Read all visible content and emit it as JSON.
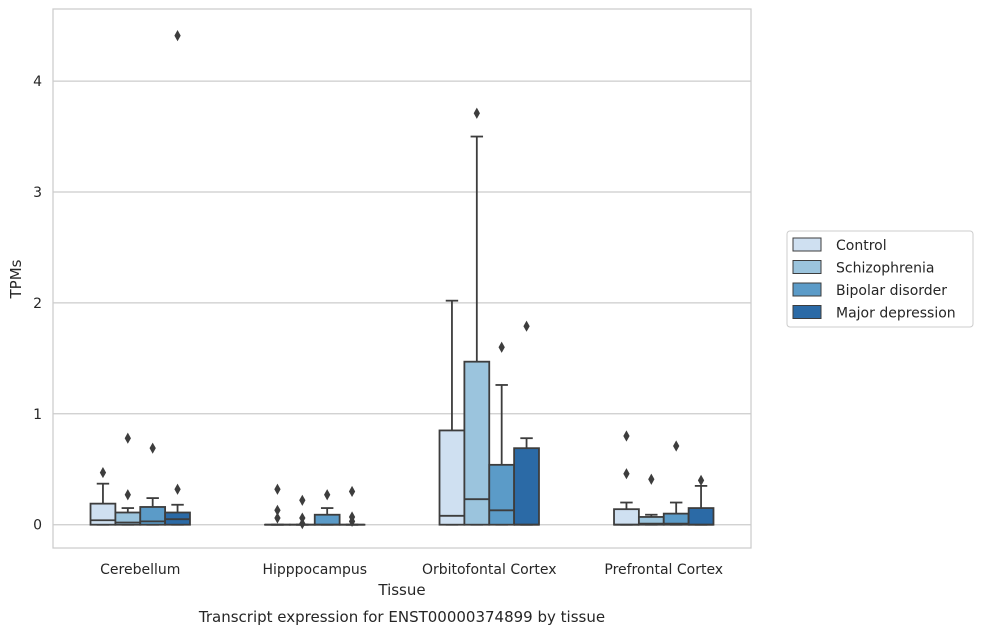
{
  "chart_data": {
    "type": "box",
    "title": "Transcript expression for ENST00000374899 by tissue",
    "xlabel": "Tissue",
    "ylabel": "TPMs",
    "ylim": [
      -0.21,
      4.65
    ],
    "yticks": [
      "0",
      "1",
      "2",
      "3",
      "4"
    ],
    "grid": "horizontal",
    "legend_position": "right",
    "categories": [
      "Cerebellum",
      "Hipppocampus",
      "Orbitofontal Cortex",
      "Prefrontal Cortex"
    ],
    "series": [
      {
        "name": "Control",
        "color": "#cfe0f1",
        "boxes": [
          {
            "q1": 0.0,
            "median": 0.04,
            "q3": 0.19,
            "whisker_low": 0.0,
            "whisker_high": 0.37,
            "outliers": [
              0.47
            ]
          },
          {
            "q1": 0.0,
            "median": 0.0,
            "q3": 0.0,
            "whisker_low": 0.0,
            "whisker_high": 0.0,
            "outliers": [
              0.32,
              0.13,
              0.06
            ]
          },
          {
            "q1": 0.0,
            "median": 0.08,
            "q3": 0.85,
            "whisker_low": 0.0,
            "whisker_high": 2.02,
            "outliers": []
          },
          {
            "q1": 0.0,
            "median": 0.0,
            "q3": 0.14,
            "whisker_low": 0.0,
            "whisker_high": 0.2,
            "outliers": [
              0.8,
              0.46
            ]
          }
        ]
      },
      {
        "name": "Schizophrenia",
        "color": "#9bc4dd",
        "boxes": [
          {
            "q1": 0.0,
            "median": 0.02,
            "q3": 0.11,
            "whisker_low": 0.0,
            "whisker_high": 0.15,
            "outliers": [
              0.78,
              0.27
            ]
          },
          {
            "q1": 0.0,
            "median": 0.0,
            "q3": 0.0,
            "whisker_low": 0.0,
            "whisker_high": 0.0,
            "outliers": [
              0.22,
              0.06,
              0.01
            ]
          },
          {
            "q1": 0.0,
            "median": 0.23,
            "q3": 1.47,
            "whisker_low": 0.0,
            "whisker_high": 3.5,
            "outliers": [
              3.71
            ]
          },
          {
            "q1": 0.0,
            "median": 0.01,
            "q3": 0.07,
            "whisker_low": 0.0,
            "whisker_high": 0.09,
            "outliers": [
              0.41
            ]
          }
        ]
      },
      {
        "name": "Bipolar disorder",
        "color": "#5b9bc8",
        "boxes": [
          {
            "q1": 0.0,
            "median": 0.03,
            "q3": 0.16,
            "whisker_low": 0.0,
            "whisker_high": 0.24,
            "outliers": [
              0.69
            ]
          },
          {
            "q1": 0.0,
            "median": 0.0,
            "q3": 0.09,
            "whisker_low": 0.0,
            "whisker_high": 0.15,
            "outliers": [
              0.27
            ]
          },
          {
            "q1": 0.0,
            "median": 0.13,
            "q3": 0.54,
            "whisker_low": 0.0,
            "whisker_high": 1.26,
            "outliers": [
              1.6
            ]
          },
          {
            "q1": 0.0,
            "median": 0.01,
            "q3": 0.1,
            "whisker_low": 0.0,
            "whisker_high": 0.2,
            "outliers": [
              0.71
            ]
          }
        ]
      },
      {
        "name": "Major depression",
        "color": "#2b6aa6",
        "boxes": [
          {
            "q1": 0.0,
            "median": 0.05,
            "q3": 0.11,
            "whisker_low": 0.0,
            "whisker_high": 0.18,
            "outliers": [
              4.41,
              0.32
            ]
          },
          {
            "q1": 0.0,
            "median": 0.0,
            "q3": 0.0,
            "whisker_low": 0.0,
            "whisker_high": 0.0,
            "outliers": [
              0.3,
              0.07,
              0.03
            ]
          },
          {
            "q1": 0.0,
            "median": 0.0,
            "q3": 0.69,
            "whisker_low": 0.0,
            "whisker_high": 0.78,
            "outliers": [
              1.79
            ]
          },
          {
            "q1": 0.0,
            "median": 0.0,
            "q3": 0.15,
            "whisker_low": 0.0,
            "whisker_high": 0.35,
            "outliers": [
              0.4
            ]
          }
        ]
      }
    ]
  }
}
